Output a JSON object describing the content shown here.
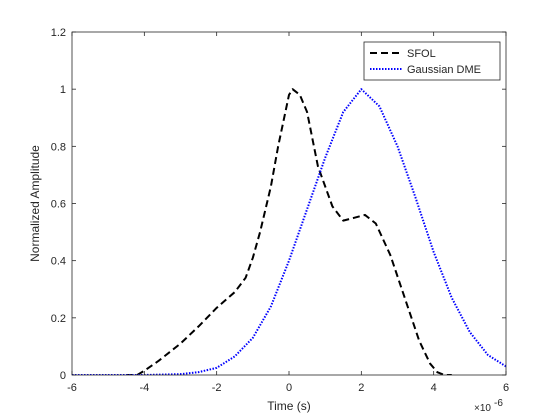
{
  "chart_data": {
    "type": "line",
    "xlabel": "Time (s)",
    "ylabel": "Normalized Amplitude",
    "x_exponent_label": "×10",
    "x_exponent_power": "-6",
    "xlim": [
      -6e-06,
      6e-06
    ],
    "ylim": [
      0,
      1.2
    ],
    "x_ticks": [
      -6e-06,
      -4e-06,
      -2e-06,
      0,
      2e-06,
      4e-06,
      6e-06
    ],
    "x_tick_labels": [
      "-6",
      "-4",
      "-2",
      "0",
      "2",
      "4",
      "6"
    ],
    "y_ticks": [
      0,
      0.2,
      0.4,
      0.6,
      0.8,
      1,
      1.2
    ],
    "y_tick_labels": [
      "0",
      "0.2",
      "0.4",
      "0.6",
      "0.8",
      "1",
      "1.2"
    ],
    "grid": false,
    "legend_placement": "top-right",
    "series": [
      {
        "name": "SFOL",
        "color": "#000000",
        "style": "dashed",
        "x": [
          -4.5e-06,
          -4.2e-06,
          -4e-06,
          -3.6e-06,
          -3e-06,
          -2.5e-06,
          -2e-06,
          -1.5e-06,
          -1.2e-06,
          -1e-06,
          -8e-07,
          -5e-07,
          -3e-07,
          -1e-07,
          0.0,
          1e-07,
          3e-07,
          5e-07,
          8e-07,
          1.2e-06,
          1.5e-06,
          1.8e-06,
          2.1e-06,
          2.4e-06,
          2.8e-06,
          3.2e-06,
          3.6e-06,
          3.9e-06,
          4.1e-06,
          4.3e-06,
          4.5e-06
        ],
        "y": [
          0.0,
          0.0,
          0.015,
          0.05,
          0.11,
          0.17,
          0.235,
          0.29,
          0.34,
          0.41,
          0.5,
          0.66,
          0.8,
          0.92,
          0.98,
          1.0,
          0.98,
          0.92,
          0.73,
          0.59,
          0.54,
          0.55,
          0.56,
          0.53,
          0.42,
          0.27,
          0.12,
          0.04,
          0.01,
          0.0,
          0.0
        ]
      },
      {
        "name": "Gaussian DME",
        "color": "#0000ff",
        "style": "dotted",
        "x": [
          -6e-06,
          -5e-06,
          -4e-06,
          -3e-06,
          -2.5e-06,
          -2e-06,
          -1.5e-06,
          -1e-06,
          -5e-07,
          0.0,
          5e-07,
          1e-06,
          1.5e-06,
          2e-06,
          2.5e-06,
          3e-06,
          3.5e-06,
          4e-06,
          4.5e-06,
          5e-06,
          5.5e-06,
          6e-06
        ],
        "y": [
          0.0,
          0.0,
          0.0,
          0.003,
          0.01,
          0.025,
          0.065,
          0.13,
          0.24,
          0.4,
          0.58,
          0.76,
          0.92,
          1.0,
          0.94,
          0.8,
          0.62,
          0.43,
          0.27,
          0.15,
          0.07,
          0.03
        ]
      }
    ]
  }
}
